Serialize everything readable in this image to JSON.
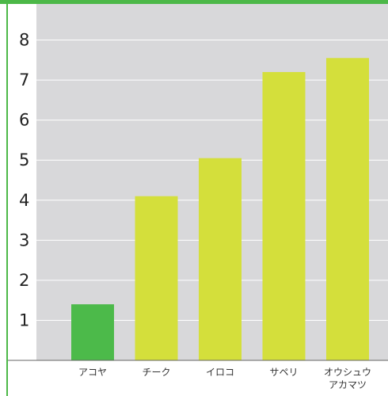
{
  "chart_data": {
    "type": "bar",
    "title": "",
    "xlabel": "",
    "ylabel": "",
    "categories": [
      [
        "アコヤ"
      ],
      [
        "チーク"
      ],
      [
        "イロコ"
      ],
      [
        "サペリ"
      ],
      [
        "オウシュウ",
        "アカマツ"
      ]
    ],
    "values": [
      1.4,
      4.1,
      5.05,
      7.2,
      7.55
    ],
    "colors": [
      "#4cba4a",
      "#d4df3b",
      "#d4df3b",
      "#d4df3b",
      "#d4df3b"
    ],
    "ylim": [
      0,
      8.9
    ],
    "yticks": [
      "1",
      "2",
      "3",
      "4",
      "5",
      "6",
      "7",
      "8"
    ],
    "grid": true,
    "plot_background": "#d8d8da",
    "accent": "#4cb848"
  }
}
